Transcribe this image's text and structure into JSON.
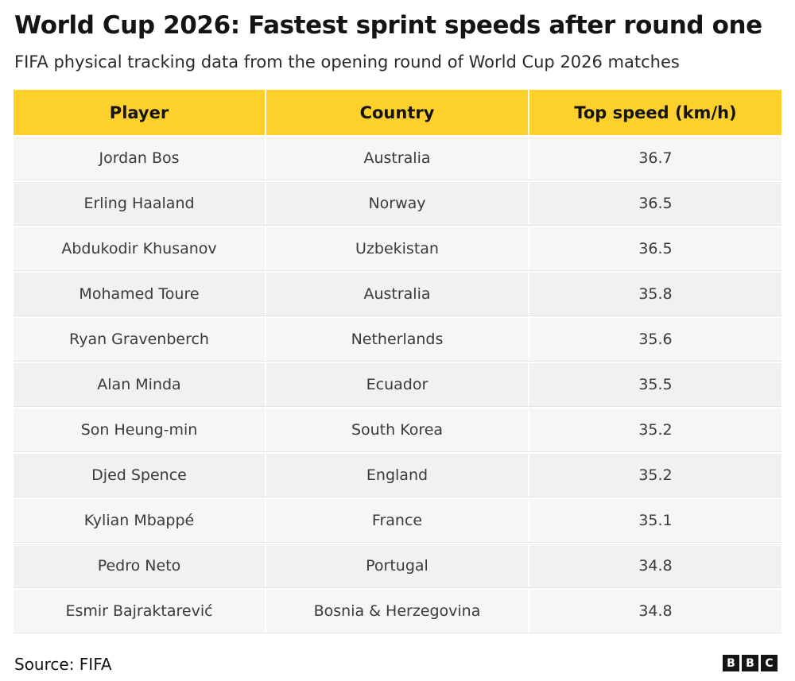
{
  "title": "World Cup 2026: Fastest sprint speeds after round one",
  "subtitle": "FIFA physical tracking data from the opening round of World Cup 2026 matches",
  "source": "Source: FIFA",
  "logo": [
    "B",
    "B",
    "C"
  ],
  "colors": {
    "header_bg": "#fdd02c",
    "row_bg": "#f4f4f4",
    "text": "#141414"
  },
  "chart_data": {
    "type": "table",
    "title": "World Cup 2026: Fastest sprint speeds after round one",
    "subtitle": "FIFA physical tracking data from the opening round of World Cup 2026 matches",
    "columns": [
      "Player",
      "Country",
      "Top speed (km/h)"
    ],
    "rows": [
      [
        "Jordan Bos",
        "Australia",
        "36.7"
      ],
      [
        "Erling Haaland",
        "Norway",
        "36.5"
      ],
      [
        "Abdukodir Khusanov",
        "Uzbekistan",
        "36.5"
      ],
      [
        "Mohamed Toure",
        "Australia",
        "35.8"
      ],
      [
        "Ryan Gravenberch",
        "Netherlands",
        "35.6"
      ],
      [
        "Alan Minda",
        "Ecuador",
        "35.5"
      ],
      [
        "Son Heung-min",
        "South Korea",
        "35.2"
      ],
      [
        "Djed Spence",
        "England",
        "35.2"
      ],
      [
        "Kylian Mbappé",
        "France",
        "35.1"
      ],
      [
        "Pedro Neto",
        "Portugal",
        "34.8"
      ],
      [
        "Esmir Bajraktarević",
        "Bosnia & Herzegovina",
        "34.8"
      ]
    ],
    "source": "Source: FIFA"
  }
}
